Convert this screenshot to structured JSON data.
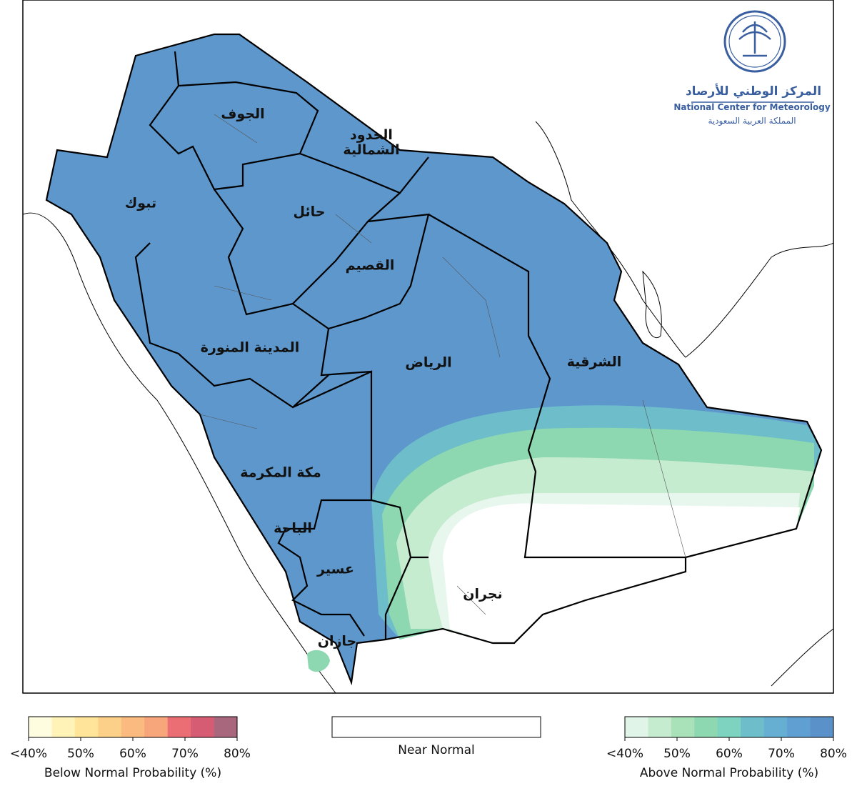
{
  "logo": {
    "arabic_name": "المركز الوطني للأرصاد",
    "english_name": "National Center for Meteorology",
    "kingdom": "المملكة العربية السعودية"
  },
  "regions": [
    {
      "label": "الجوف"
    },
    {
      "label": "الحدود الشمالية"
    },
    {
      "label": "تبوك"
    },
    {
      "label": "حائل"
    },
    {
      "label": "القصيم"
    },
    {
      "label": "المدينة المنورة"
    },
    {
      "label": "الرياض"
    },
    {
      "label": "الشرقية"
    },
    {
      "label": "مكة المكرمة"
    },
    {
      "label": "الباحة"
    },
    {
      "label": "عسير"
    },
    {
      "label": "نجران"
    },
    {
      "label": "جازان"
    }
  ],
  "legend": {
    "below": {
      "title": "Below Normal Probability (%)",
      "range": [
        40,
        80
      ],
      "ticks": [
        {
          "value": 40,
          "label": "<40%"
        },
        {
          "value": 50,
          "label": "50%"
        },
        {
          "value": 60,
          "label": "60%"
        },
        {
          "value": 70,
          "label": "70%"
        },
        {
          "value": 80,
          "label": "80%"
        }
      ],
      "colors": [
        "#fffde0",
        "#fff3b8",
        "#ffe49a",
        "#fdd08a",
        "#fbbb80",
        "#f7a57a",
        "#ea6e73",
        "#d65c74",
        "#a8677c"
      ]
    },
    "near": {
      "title": "Near Normal"
    },
    "above": {
      "title": "Above Normal Probability (%)",
      "range": [
        40,
        80
      ],
      "ticks": [
        {
          "value": 40,
          "label": "<40%"
        },
        {
          "value": 50,
          "label": "50%"
        },
        {
          "value": 60,
          "label": "60%"
        },
        {
          "value": 70,
          "label": "70%"
        },
        {
          "value": 80,
          "label": "80%"
        }
      ],
      "colors": [
        "#e0f5e8",
        "#c6ecd0",
        "#a9e2b8",
        "#8dd8b0",
        "#7dd3bf",
        "#6dbdcb",
        "#66aed2",
        "#5f9fd2",
        "#5a91c8"
      ]
    }
  }
}
